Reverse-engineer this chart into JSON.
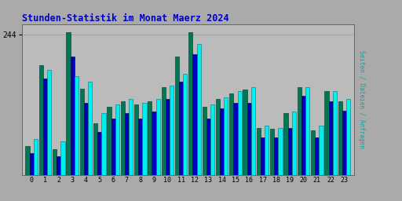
{
  "title": "Stunden-Statistik im Monat Maerz 2024",
  "ylabel": "Seiten / Dateien / Anfragen",
  "hours": [
    0,
    1,
    2,
    3,
    4,
    5,
    6,
    7,
    8,
    9,
    10,
    11,
    12,
    13,
    14,
    15,
    16,
    17,
    18,
    19,
    20,
    21,
    22,
    23
  ],
  "seiten": [
    50,
    190,
    45,
    248,
    150,
    90,
    118,
    128,
    122,
    128,
    152,
    205,
    248,
    118,
    132,
    142,
    148,
    82,
    80,
    108,
    152,
    78,
    145,
    128
  ],
  "dateien": [
    38,
    168,
    32,
    205,
    125,
    75,
    98,
    108,
    98,
    110,
    132,
    162,
    210,
    98,
    115,
    125,
    125,
    65,
    65,
    82,
    138,
    65,
    128,
    112
  ],
  "anfragen": [
    62,
    182,
    58,
    172,
    162,
    108,
    122,
    132,
    125,
    132,
    155,
    175,
    228,
    122,
    135,
    145,
    152,
    85,
    82,
    110,
    152,
    85,
    145,
    132
  ],
  "color_seiten": "#007755",
  "color_dateien": "#0000BB",
  "color_anfragen": "#00EEEE",
  "edge_seiten": "#003322",
  "edge_dateien": "#000044",
  "edge_anfragen": "#007777",
  "bg_outer": "#AAAAAA",
  "bg_plot": "#BBBBBB",
  "title_color": "#0000CC",
  "ylabel_color": "#00AAAA",
  "ytick": 244,
  "ymax": 262,
  "bar_width": 0.3,
  "figwidth": 5.12,
  "figheight": 2.56,
  "dpi": 100
}
